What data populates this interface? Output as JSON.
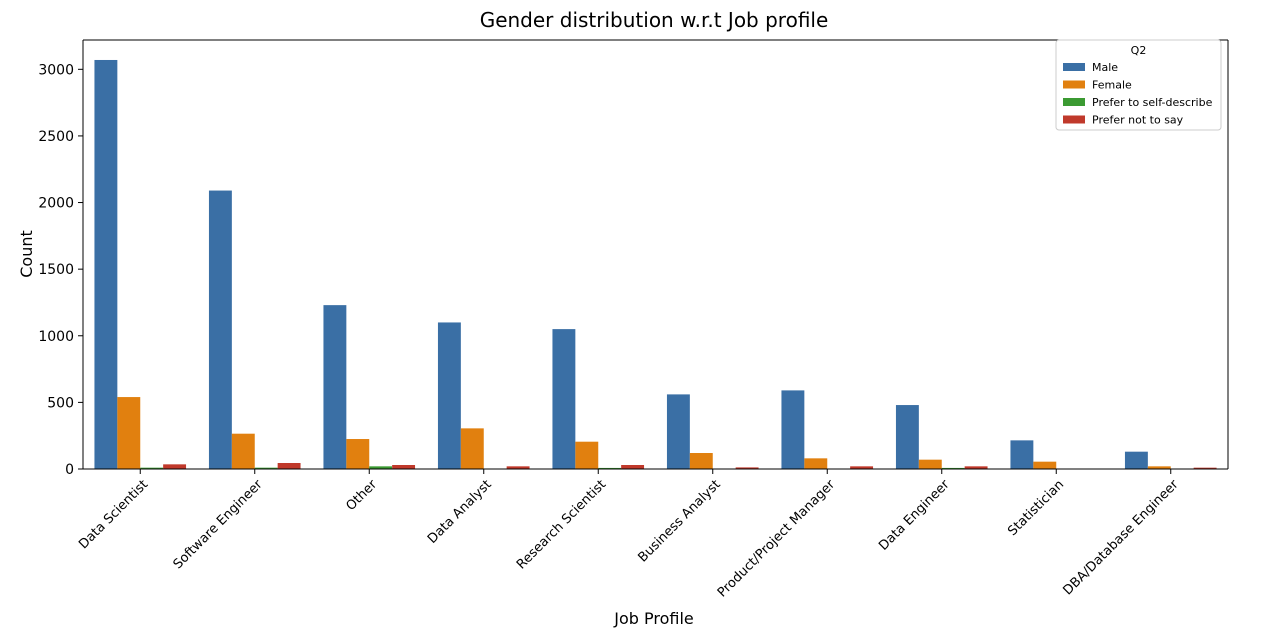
{
  "chart_data": {
    "type": "bar",
    "title": "Gender distribution w.r.t Job profile",
    "xlabel": "Job Profile",
    "ylabel": "Count",
    "ylim": [
      0,
      3220
    ],
    "yticks": [
      0,
      500,
      1000,
      1500,
      2000,
      2500,
      3000
    ],
    "grid": false,
    "legend": {
      "title": "Q2",
      "placement": "top-right"
    },
    "categories": [
      "Data Scientist",
      "Software Engineer",
      "Other",
      "Data Analyst",
      "Research Scientist",
      "Business Analyst",
      "Product/Project Manager",
      "Data Engineer",
      "Statistician",
      "DBA/Database Engineer"
    ],
    "series": [
      {
        "name": "Male",
        "color": "#3a6fa5",
        "values": [
          3070,
          2090,
          1230,
          1100,
          1050,
          560,
          590,
          480,
          215,
          130
        ]
      },
      {
        "name": "Female",
        "color": "#e1800f",
        "values": [
          540,
          265,
          225,
          305,
          205,
          120,
          80,
          70,
          55,
          20
        ]
      },
      {
        "name": "Prefer to self-describe",
        "color": "#3b9a32",
        "values": [
          10,
          10,
          20,
          0,
          8,
          0,
          0,
          8,
          0,
          0
        ]
      },
      {
        "name": "Prefer not to say",
        "color": "#c0392b",
        "values": [
          35,
          45,
          30,
          20,
          30,
          12,
          20,
          20,
          0,
          10
        ]
      }
    ]
  }
}
